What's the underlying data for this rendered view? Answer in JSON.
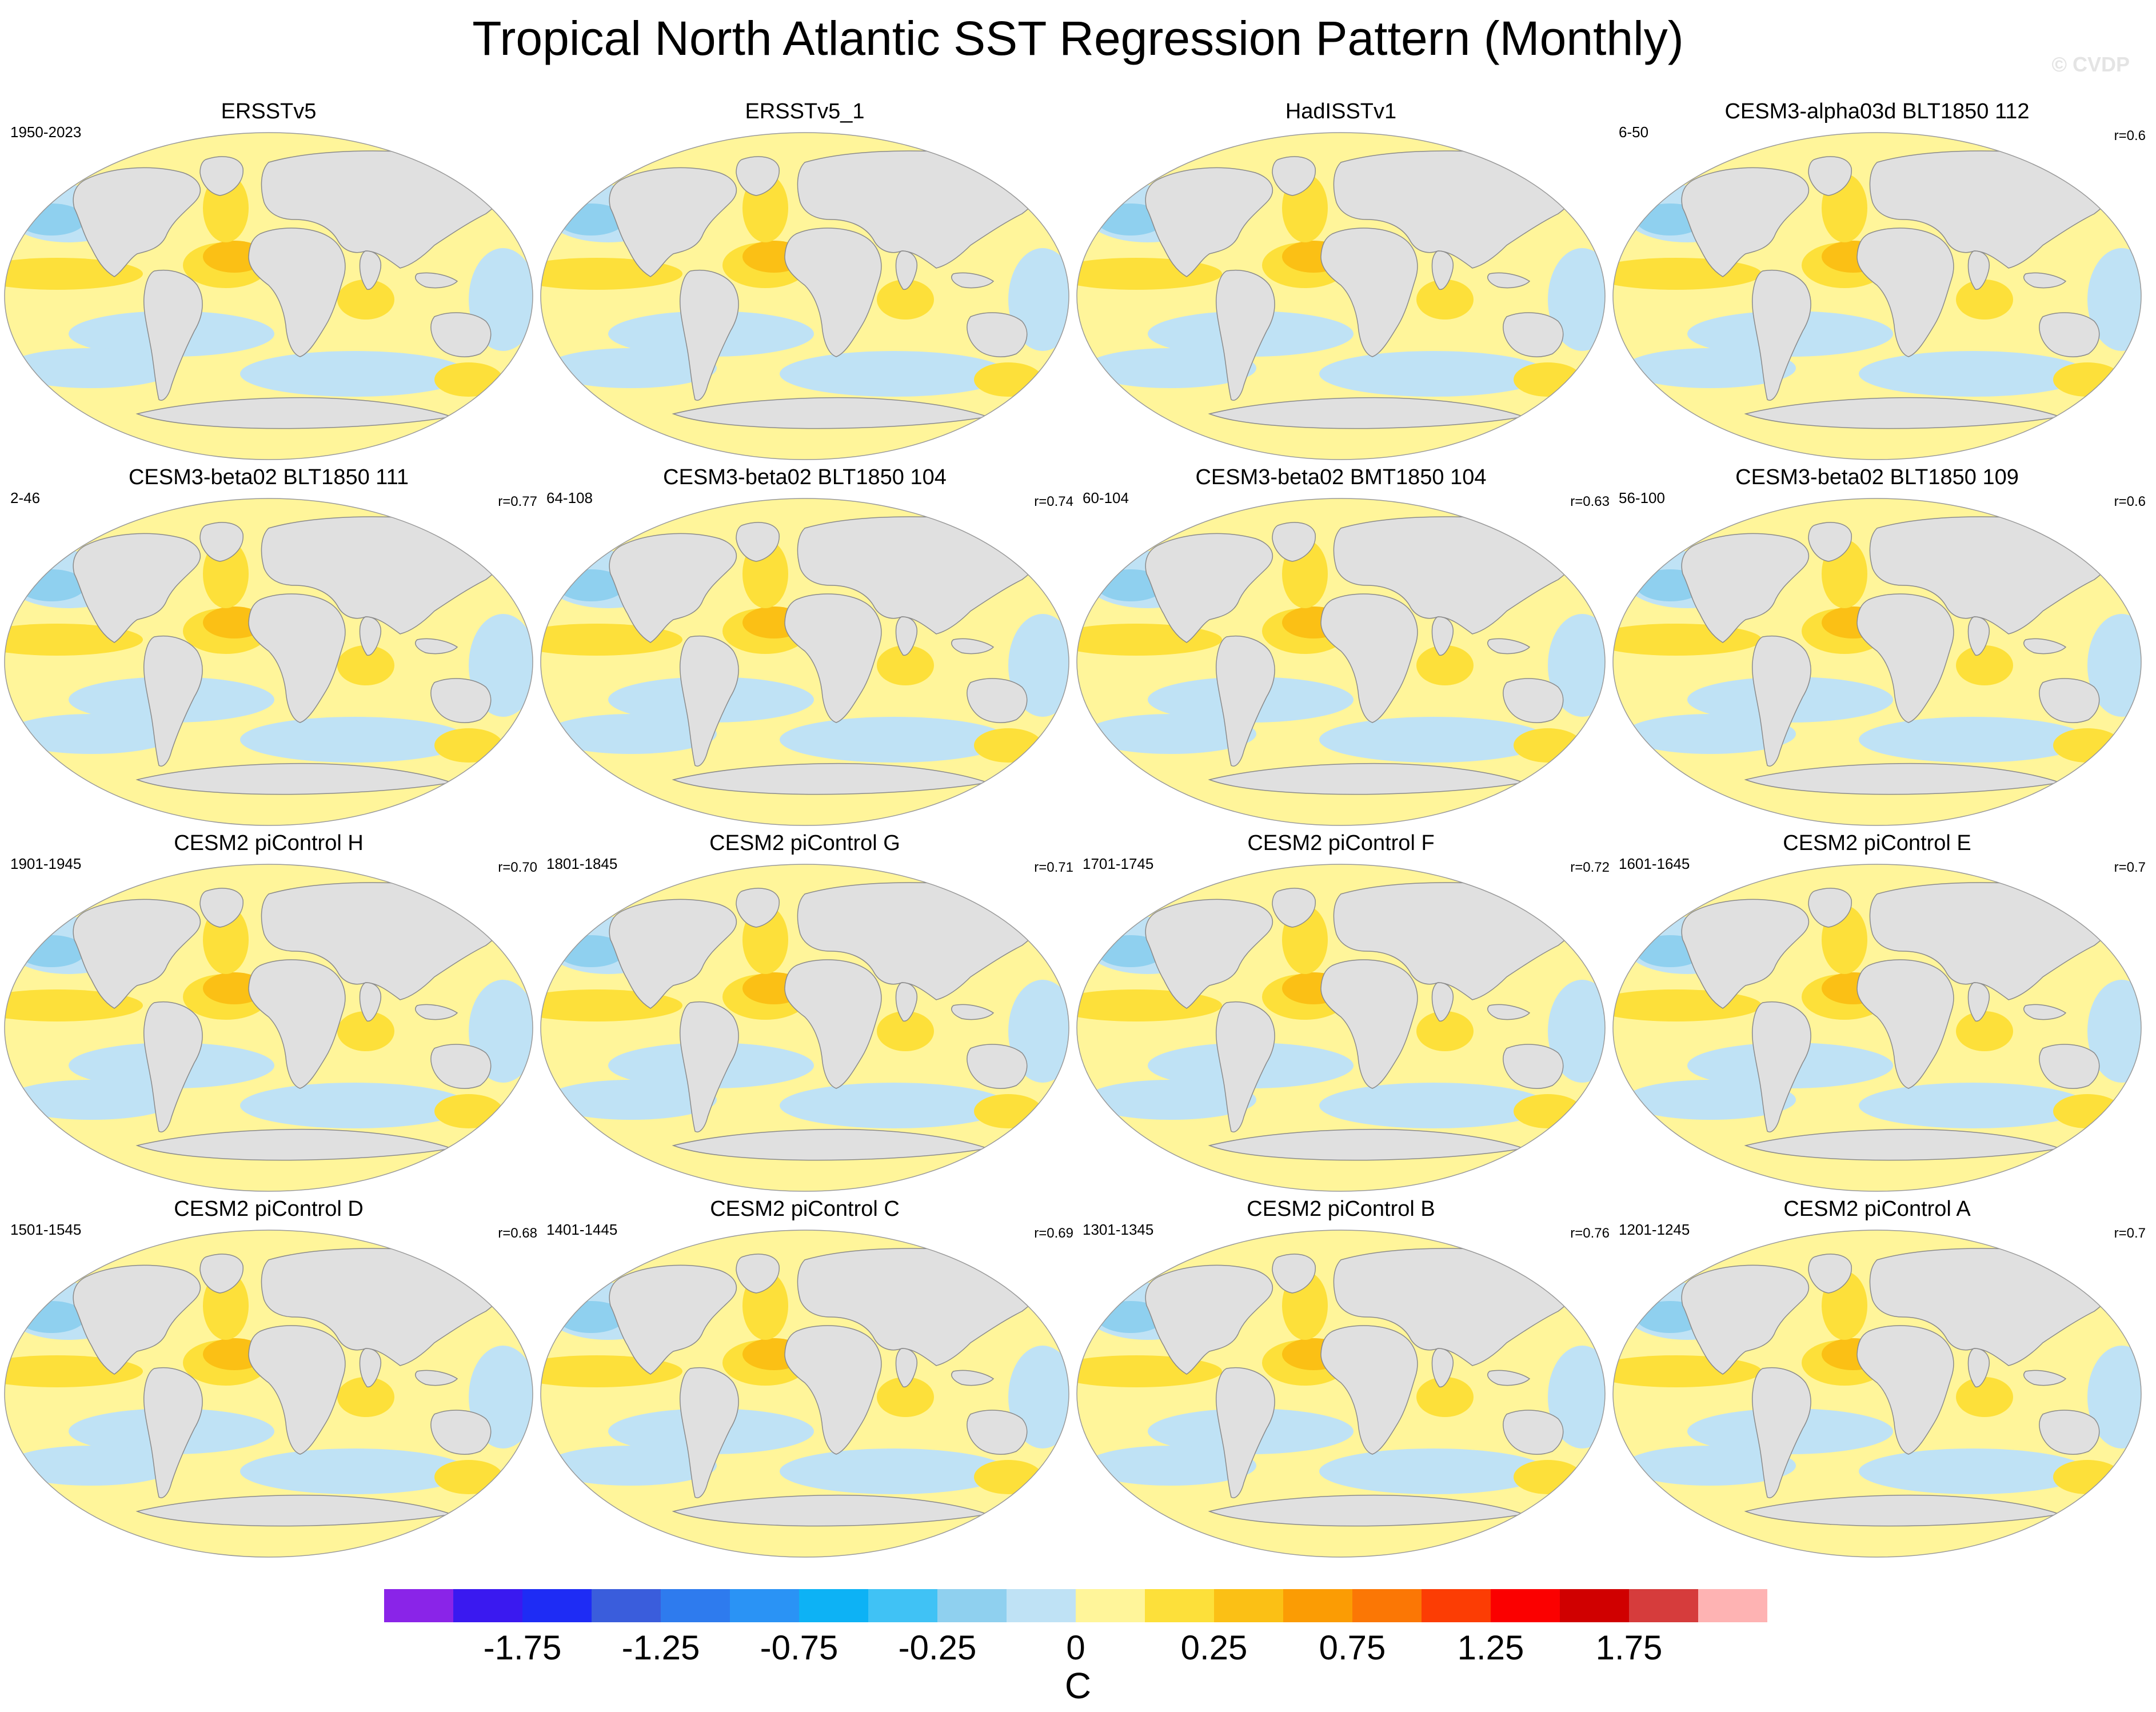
{
  "title": "Tropical North Atlantic SST Regression Pattern (Monthly)",
  "watermark": "© CVDP",
  "panels": [
    {
      "title": "ERSSTv5",
      "period": "1950-2023",
      "r": ""
    },
    {
      "title": "ERSSTv5_1",
      "period": "",
      "r": ""
    },
    {
      "title": "HadISSTv1",
      "period": "",
      "r": ""
    },
    {
      "title": "CESM3-alpha03d BLT1850 112",
      "period": "6-50",
      "r": "r=0.6"
    },
    {
      "title": "CESM3-beta02 BLT1850 111",
      "period": "2-46",
      "r": "r=0.77"
    },
    {
      "title": "CESM3-beta02 BLT1850 104",
      "period": "64-108",
      "r": "r=0.74"
    },
    {
      "title": "CESM3-beta02 BMT1850 104",
      "period": "60-104",
      "r": "r=0.63"
    },
    {
      "title": "CESM3-beta02 BLT1850 109",
      "period": "56-100",
      "r": "r=0.6"
    },
    {
      "title": "CESM2 piControl H",
      "period": "1901-1945",
      "r": "r=0.70"
    },
    {
      "title": "CESM2 piControl G",
      "period": "1801-1845",
      "r": "r=0.71"
    },
    {
      "title": "CESM2 piControl F",
      "period": "1701-1745",
      "r": "r=0.72"
    },
    {
      "title": "CESM2 piControl E",
      "period": "1601-1645",
      "r": "r=0.7"
    },
    {
      "title": "CESM2 piControl D",
      "period": "1501-1545",
      "r": "r=0.68"
    },
    {
      "title": "CESM2 piControl C",
      "period": "1401-1445",
      "r": "r=0.69"
    },
    {
      "title": "CESM2 piControl B",
      "period": "1301-1345",
      "r": "r=0.76"
    },
    {
      "title": "CESM2 piControl A",
      "period": "1201-1245",
      "r": "r=0.7"
    }
  ],
  "colorbar": {
    "colors": [
      "#8a24e8",
      "#3a19f0",
      "#1e2cf5",
      "#3a5ddc",
      "#2e7bee",
      "#2a93f5",
      "#0db2f5",
      "#40c2f5",
      "#8fd0ef",
      "#bfe2f5",
      "#fff59a",
      "#fde03a",
      "#fbc015",
      "#fb9c04",
      "#fb7705",
      "#fc3d04",
      "#fb0000",
      "#d00000",
      "#d63c3c",
      "#feb3b3"
    ],
    "tick_labels": [
      "-1.75",
      "-1.25",
      "-0.75",
      "-0.25",
      "0",
      "0.25",
      "0.75",
      "1.25",
      "1.75"
    ],
    "units": "C"
  }
}
